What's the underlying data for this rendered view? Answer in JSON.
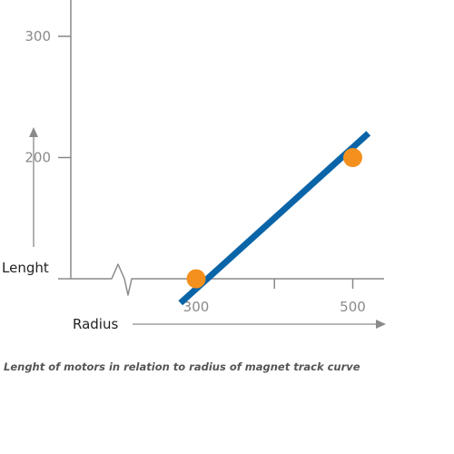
{
  "chart_data": {
    "type": "line",
    "title": "",
    "xlabel": "Radius",
    "ylabel": "Lenght",
    "xlim": [
      140,
      540
    ],
    "ylim": [
      100,
      330
    ],
    "x_ticks": [
      {
        "value": 300,
        "label": "300"
      },
      {
        "value": 400,
        "label": ""
      },
      {
        "value": 500,
        "label": "500"
      }
    ],
    "y_ticks": [
      {
        "value": 300,
        "label": "300"
      },
      {
        "value": 200,
        "label": "200"
      },
      {
        "value": 100,
        "label": ""
      }
    ],
    "grid": false,
    "legend": "none",
    "axis_break": "x",
    "series": [
      {
        "line": {
          "x": [
            280,
            520
          ],
          "y": [
            80,
            220
          ]
        },
        "points": {
          "x": [
            300,
            500
          ],
          "y": [
            100,
            200
          ]
        }
      }
    ],
    "colors": {
      "line": "#0a64a8",
      "point": "#f4901e",
      "axis": "#8a8a8a"
    }
  },
  "caption": "Lenght of motors in relation to radius of magnet track curve"
}
